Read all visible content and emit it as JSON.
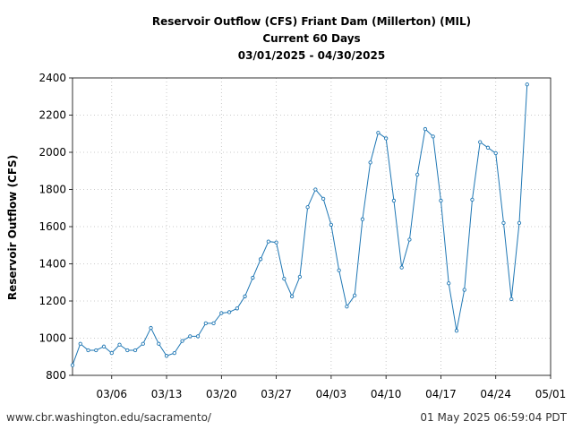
{
  "chart_data": {
    "type": "line",
    "title_lines": [
      "Reservoir Outflow (CFS) Friant Dam (Millerton) (MIL)",
      "Current 60 Days",
      "03/01/2025 - 04/30/2025"
    ],
    "xlabel": "",
    "ylabel": "Reservoir Outflow (CFS)",
    "ylim": [
      800,
      2400
    ],
    "yticks": [
      800,
      1000,
      1200,
      1400,
      1600,
      1800,
      2000,
      2200,
      2400
    ],
    "xrange": [
      "2025-03-01",
      "2025-05-01"
    ],
    "xticks": [
      {
        "date": "2025-03-06",
        "label": "03/06"
      },
      {
        "date": "2025-03-13",
        "label": "03/13"
      },
      {
        "date": "2025-03-20",
        "label": "03/20"
      },
      {
        "date": "2025-03-27",
        "label": "03/27"
      },
      {
        "date": "2025-04-03",
        "label": "04/03"
      },
      {
        "date": "2025-04-10",
        "label": "04/10"
      },
      {
        "date": "2025-04-17",
        "label": "04/17"
      },
      {
        "date": "2025-04-24",
        "label": "04/24"
      },
      {
        "date": "2025-05-01",
        "label": "05/01"
      }
    ],
    "grid": true,
    "line_color": "#1f77b4",
    "series": [
      {
        "points": [
          [
            "2025-03-01",
            855
          ],
          [
            "2025-03-02",
            970
          ],
          [
            "2025-03-03",
            935
          ],
          [
            "2025-03-04",
            935
          ],
          [
            "2025-03-05",
            955
          ],
          [
            "2025-03-06",
            920
          ],
          [
            "2025-03-07",
            965
          ],
          [
            "2025-03-08",
            935
          ],
          [
            "2025-03-09",
            935
          ],
          [
            "2025-03-10",
            970
          ],
          [
            "2025-03-11",
            1055
          ],
          [
            "2025-03-12",
            970
          ],
          [
            "2025-03-13",
            905
          ],
          [
            "2025-03-14",
            920
          ],
          [
            "2025-03-15",
            985
          ],
          [
            "2025-03-16",
            1010
          ],
          [
            "2025-03-17",
            1010
          ],
          [
            "2025-03-18",
            1080
          ],
          [
            "2025-03-19",
            1080
          ],
          [
            "2025-03-20",
            1135
          ],
          [
            "2025-03-21",
            1140
          ],
          [
            "2025-03-22",
            1160
          ],
          [
            "2025-03-23",
            1225
          ],
          [
            "2025-03-24",
            1325
          ],
          [
            "2025-03-25",
            1425
          ],
          [
            "2025-03-26",
            1520
          ],
          [
            "2025-03-27",
            1515
          ],
          [
            "2025-03-28",
            1320
          ],
          [
            "2025-03-29",
            1225
          ],
          [
            "2025-03-30",
            1330
          ],
          [
            "2025-03-31",
            1705
          ],
          [
            "2025-04-01",
            1800
          ],
          [
            "2025-04-02",
            1750
          ],
          [
            "2025-04-03",
            1610
          ],
          [
            "2025-04-04",
            1365
          ],
          [
            "2025-04-05",
            1170
          ],
          [
            "2025-04-06",
            1230
          ],
          [
            "2025-04-07",
            1640
          ],
          [
            "2025-04-08",
            1945
          ],
          [
            "2025-04-09",
            2105
          ],
          [
            "2025-04-10",
            2075
          ],
          [
            "2025-04-11",
            1740
          ],
          [
            "2025-04-12",
            1380
          ],
          [
            "2025-04-13",
            1530
          ],
          [
            "2025-04-14",
            1880
          ],
          [
            "2025-04-15",
            2125
          ],
          [
            "2025-04-16",
            2085
          ],
          [
            "2025-04-17",
            1740
          ],
          [
            "2025-04-18",
            1295
          ],
          [
            "2025-04-19",
            1040
          ],
          [
            "2025-04-20",
            1260
          ],
          [
            "2025-04-21",
            1745
          ],
          [
            "2025-04-22",
            2055
          ],
          [
            "2025-04-23",
            2025
          ],
          [
            "2025-04-24",
            1995
          ],
          [
            "2025-04-25",
            1620
          ],
          [
            "2025-04-26",
            1210
          ],
          [
            "2025-04-27",
            1620
          ],
          [
            "2025-04-28",
            2365
          ]
        ]
      }
    ]
  },
  "footer": {
    "source": "www.cbr.washington.edu/sacramento/",
    "generated": "01 May 2025 06:59:04 PDT"
  }
}
